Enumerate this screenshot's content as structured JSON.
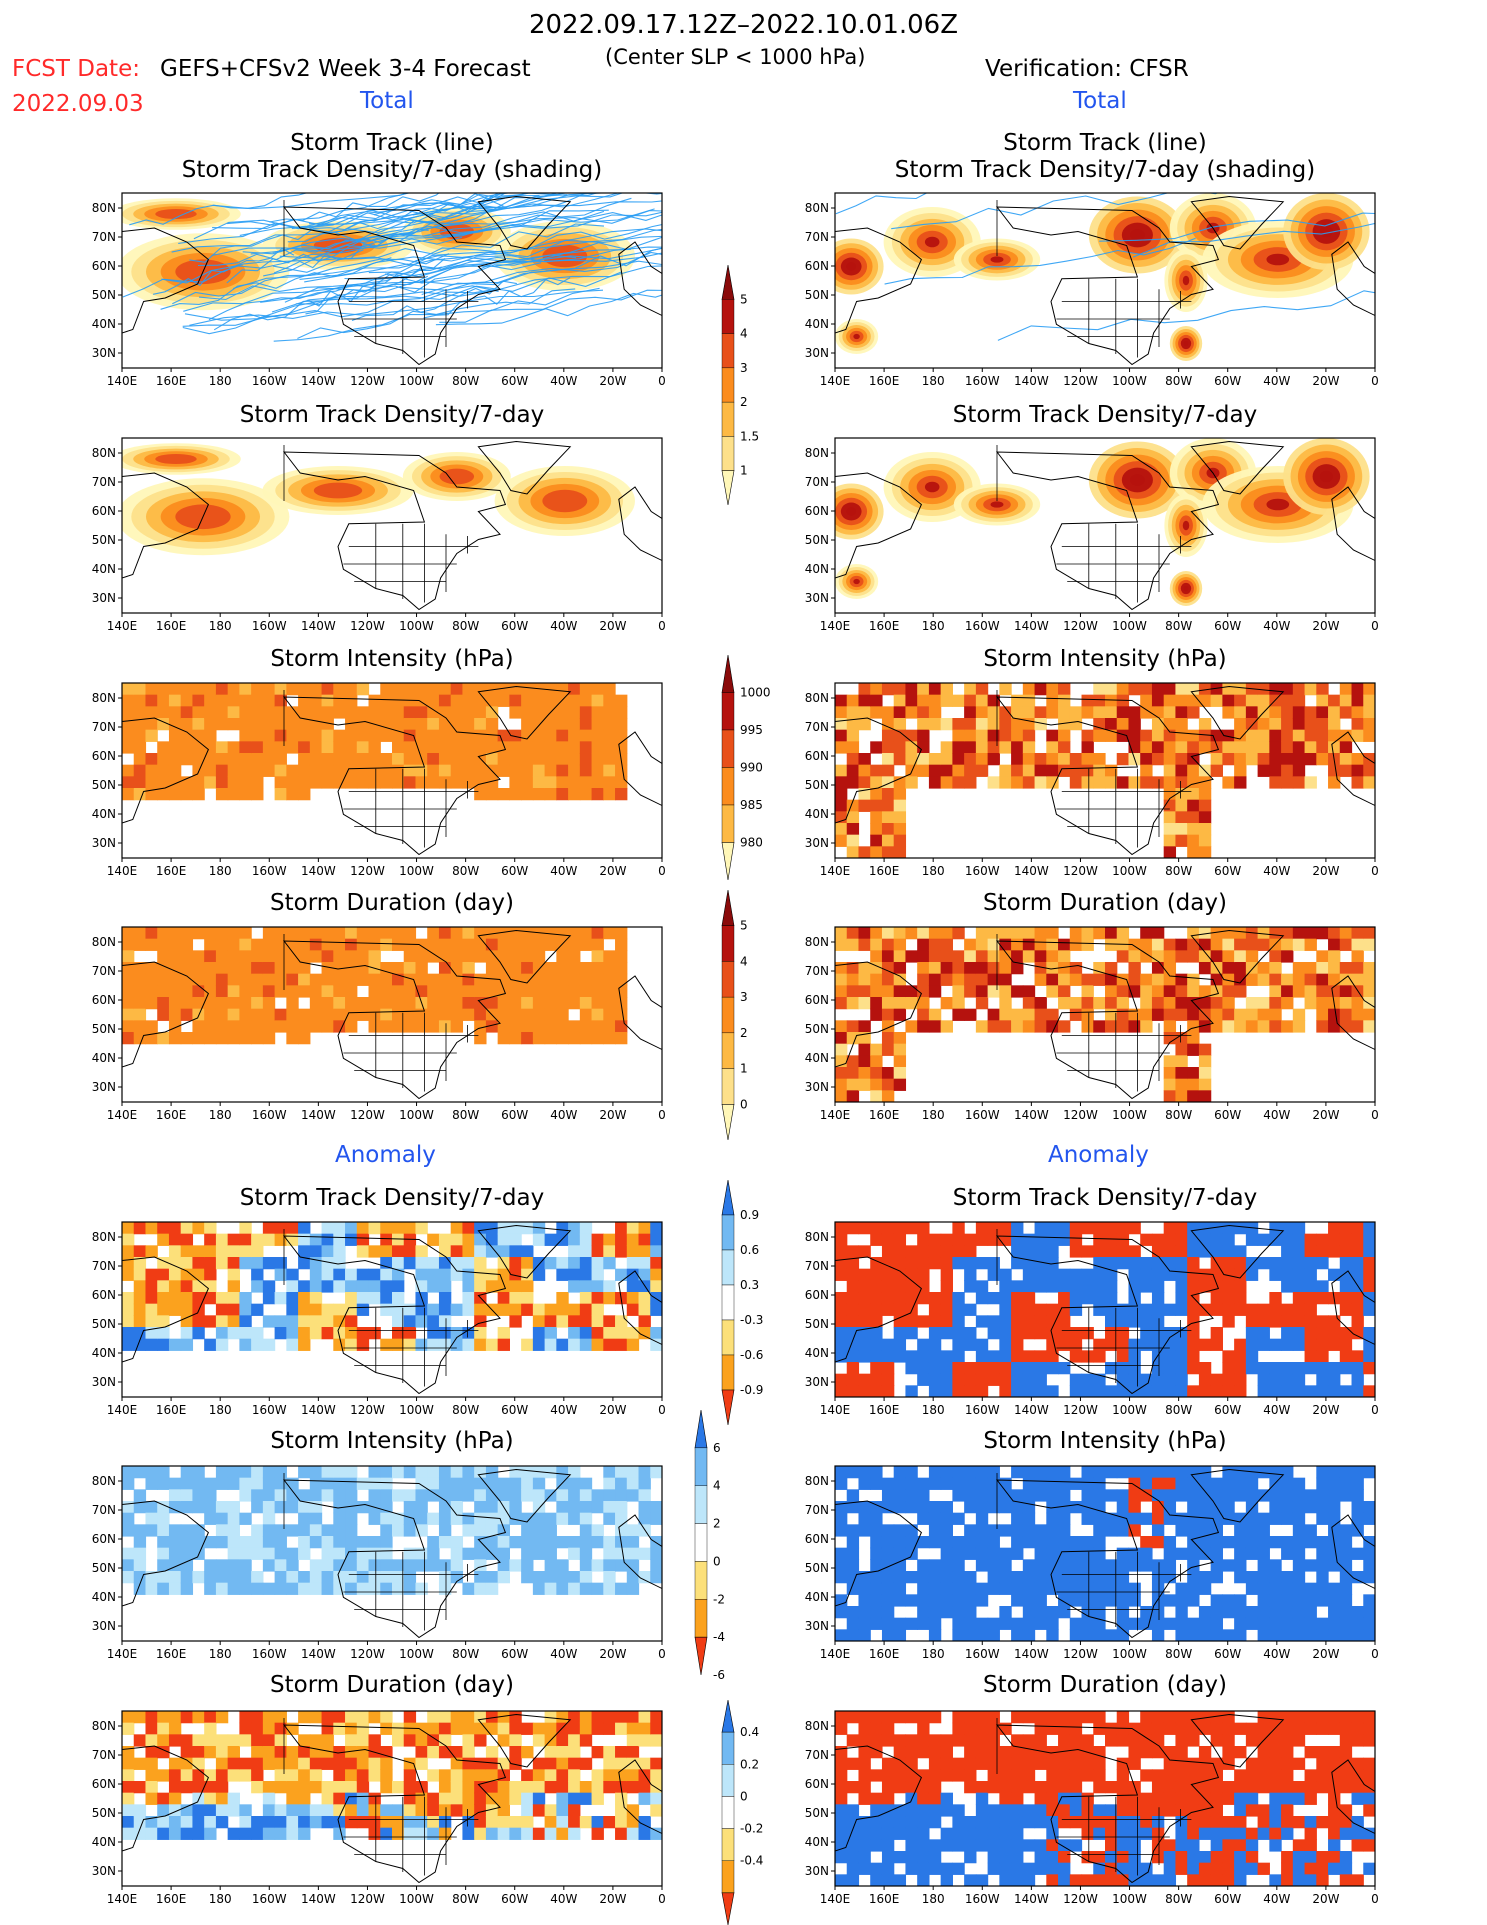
{
  "header": {
    "date_range": "2022.09.17.12Z–2022.10.01.06Z",
    "criterion": "(Center SLP < 1000 hPa)",
    "fcst_label": "FCST Date:",
    "fcst_date": "2022.09.03",
    "forecast_title": "GEFS+CFSv2 Week 3-4 Forecast",
    "verification_title": "Verification: CFSR"
  },
  "sections": {
    "total": "Total",
    "anomaly": "Anomaly"
  },
  "panel_titles": {
    "storm_track_line": "Storm Track (line)",
    "storm_track_shading": "Storm Track Density/7-day (shading)",
    "density": "Storm Track Density/7-day",
    "intensity": "Storm Intensity (hPa)",
    "duration": "Storm Duration (day)"
  },
  "axes": {
    "lon_labels": [
      "140E",
      "160E",
      "180",
      "160W",
      "140W",
      "120W",
      "100W",
      "80W",
      "60W",
      "40W",
      "20W",
      "0"
    ],
    "lat_labels": [
      "80N",
      "70N",
      "60N",
      "50N",
      "40N",
      "30N"
    ]
  },
  "colorbars": {
    "total_density": {
      "labels": [
        "1",
        "1.5",
        "2",
        "3",
        "4",
        "5"
      ],
      "colors": [
        "#fff7b8",
        "#fde08a",
        "#fdb944",
        "#fb8c1e",
        "#e8501a",
        "#b5120e",
        "#8a0a0a"
      ]
    },
    "total_intensity": {
      "labels": [
        "1000",
        "995",
        "990",
        "985",
        "980"
      ],
      "colors": [
        "#fff7b8",
        "#fdb944",
        "#fb8c1e",
        "#e8501a",
        "#b5120e",
        "#8a0a0a"
      ]
    },
    "total_duration": {
      "labels": [
        "0",
        "1",
        "2",
        "3",
        "4",
        "5"
      ],
      "colors": [
        "#fff7b8",
        "#fde08a",
        "#fdb944",
        "#fb8c1e",
        "#e8501a",
        "#b5120e",
        "#8a0a0a"
      ]
    },
    "anom_density": {
      "labels": [
        "0.9",
        "0.6",
        "0.3",
        "-0.3",
        "-0.6",
        "-0.9"
      ],
      "colors": [
        "#f03c14",
        "#fba21e",
        "#fce07a",
        "#ffffff",
        "#bde6fa",
        "#72b9f2",
        "#2a78e6"
      ]
    },
    "anom_intensity": {
      "labels": [
        "6",
        "4",
        "2",
        "0",
        "-2",
        "-4",
        "-6"
      ],
      "colors": [
        "#f03c14",
        "#fba21e",
        "#fce07a",
        "#ffffff",
        "#bde6fa",
        "#72b9f2",
        "#2a78e6"
      ]
    },
    "anom_duration": {
      "labels": [
        "0.4",
        "0.2",
        "0",
        "-0.2",
        "-0.4"
      ],
      "colors": [
        "#f03c14",
        "#fba21e",
        "#fce07a",
        "#ffffff",
        "#bde6fa",
        "#72b9f2",
        "#2a78e6"
      ]
    }
  }
}
